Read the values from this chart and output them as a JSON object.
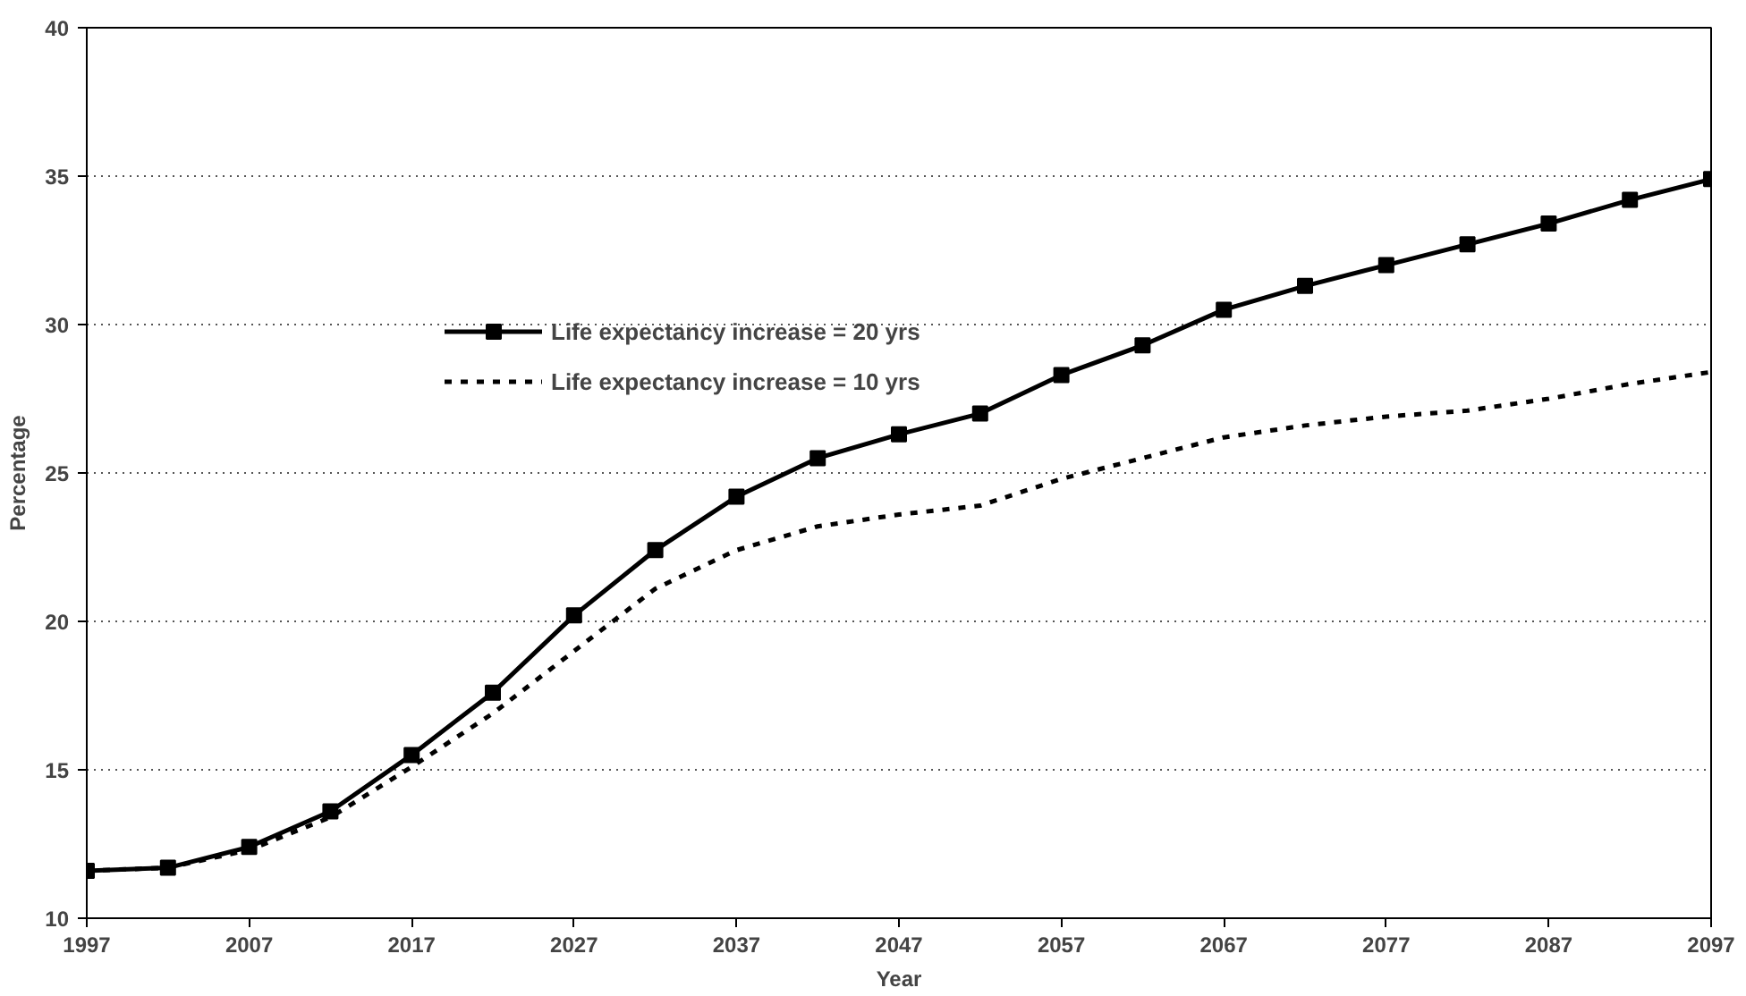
{
  "chart_data": {
    "type": "line",
    "xlabel": "Year",
    "ylabel": "Percentage",
    "x": [
      1997,
      2002,
      2007,
      2012,
      2017,
      2022,
      2027,
      2032,
      2037,
      2042,
      2047,
      2052,
      2057,
      2062,
      2067,
      2072,
      2077,
      2082,
      2087,
      2092,
      2097
    ],
    "series": [
      {
        "name": "Life expectancy increase = 20 yrs",
        "color": "#000000",
        "marker": "square",
        "line_style": "solid",
        "values": [
          11.6,
          11.7,
          12.4,
          13.6,
          15.5,
          17.6,
          20.2,
          22.4,
          24.2,
          25.5,
          26.3,
          27.0,
          28.3,
          29.3,
          30.5,
          31.3,
          32.0,
          32.7,
          33.4,
          34.2,
          34.9
        ]
      },
      {
        "name": "Life expectancy increase = 10 yrs",
        "color": "#000000",
        "marker": "none",
        "line_style": "dashed",
        "values": [
          11.6,
          11.7,
          12.3,
          13.4,
          15.1,
          16.9,
          19.0,
          21.1,
          22.4,
          23.2,
          23.6,
          23.9,
          24.8,
          25.5,
          26.2,
          26.6,
          26.9,
          27.1,
          27.5,
          28.0,
          28.4
        ]
      }
    ],
    "xlim": [
      1997,
      2097
    ],
    "xticks": [
      1997,
      2007,
      2017,
      2027,
      2037,
      2047,
      2057,
      2067,
      2077,
      2087,
      2097
    ],
    "ylim": [
      10,
      40
    ],
    "yticks": [
      10,
      15,
      20,
      25,
      30,
      35,
      40
    ],
    "grid": "y",
    "legend": "top left"
  }
}
